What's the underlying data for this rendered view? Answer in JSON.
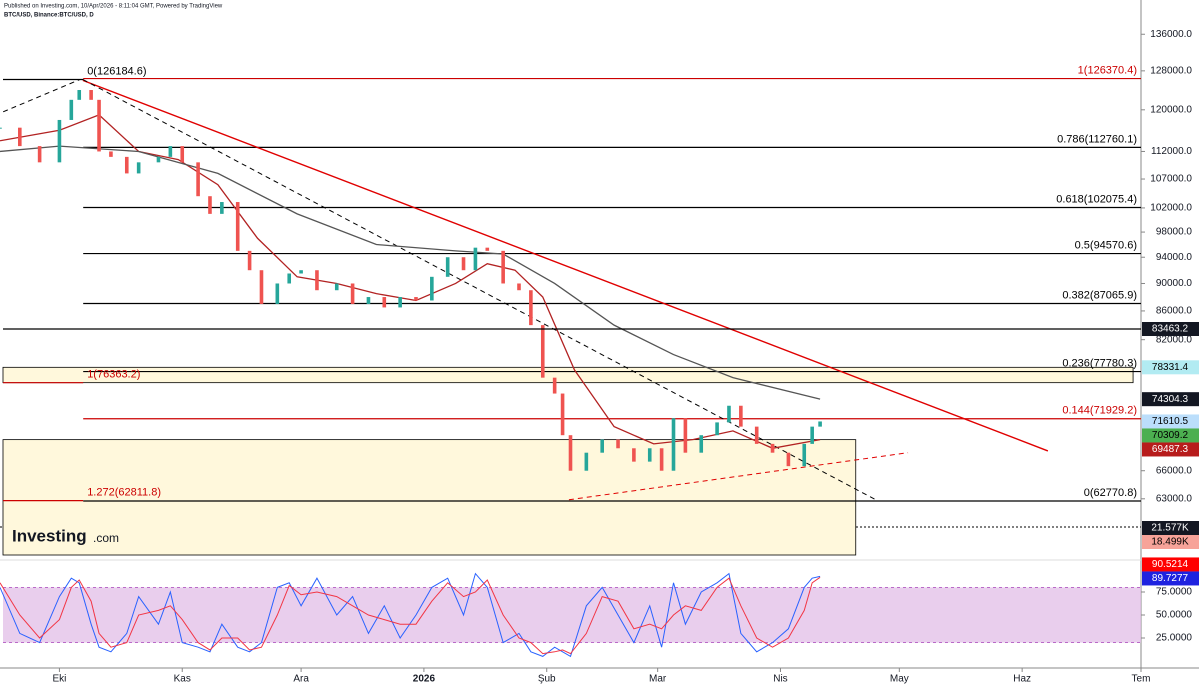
{
  "chart_data": {
    "type": "candlestick",
    "header": {
      "line1": "Published on Investing.com, 10/Apr/2026 - 8:11:04 GMT, Powered by TradingView",
      "line2": "BTC/USD, Binance:BTC/USD, D"
    },
    "logo": {
      "name": "Investing",
      "suffix": ".com"
    },
    "log_scale": true,
    "xlim": [
      -15,
      273
    ],
    "ylim": [
      57400,
      138100
    ],
    "xticks": [
      {
        "value": 0,
        "label": "Eki"
      },
      {
        "value": 31,
        "label": "Kas"
      },
      {
        "value": 61,
        "label": "Ara"
      },
      {
        "value": 92,
        "label": "2026"
      },
      {
        "value": 123,
        "label": "Şub"
      },
      {
        "value": 151,
        "label": "Mar"
      },
      {
        "value": 182,
        "label": "Nis"
      },
      {
        "value": 212,
        "label": "May"
      },
      {
        "value": 243,
        "label": "Haz"
      },
      {
        "value": 273,
        "label": "Tem"
      }
    ],
    "yticks": [
      {
        "value": 136000,
        "label": "136000.0"
      },
      {
        "value": 128000,
        "label": "128000.0"
      },
      {
        "value": 120000,
        "label": "120000.0"
      },
      {
        "value": 112000,
        "label": "112000.0"
      },
      {
        "value": 107000,
        "label": "107000.0"
      },
      {
        "value": 102000,
        "label": "102000.0"
      },
      {
        "value": 98000,
        "label": "98000.0"
      },
      {
        "value": 94000,
        "label": "94000.0"
      },
      {
        "value": 90000,
        "label": "90000.0"
      },
      {
        "value": 86000,
        "label": "86000.0"
      },
      {
        "value": 82000,
        "label": "82000.0"
      },
      {
        "value": 66000,
        "label": "66000.0"
      },
      {
        "value": 63000,
        "label": "63000.0"
      }
    ],
    "x": [
      -15,
      -10,
      -5,
      0,
      3,
      5,
      8,
      10,
      13,
      17,
      20,
      25,
      28,
      31,
      35,
      38,
      41,
      45,
      48,
      51,
      55,
      58,
      61,
      65,
      70,
      74,
      78,
      82,
      86,
      90,
      94,
      98,
      102,
      105,
      108,
      112,
      116,
      119,
      122,
      125,
      127,
      129,
      133,
      137,
      141,
      145,
      149,
      152,
      155,
      158,
      162,
      166,
      169,
      172,
      176,
      180,
      184,
      188,
      190,
      192
    ],
    "close": [
      116500,
      113000,
      110000,
      118000,
      122000,
      124000,
      122000,
      112000,
      111000,
      108000,
      110000,
      111000,
      113000,
      110000,
      104000,
      101000,
      103000,
      95000,
      92000,
      87000,
      90000,
      91500,
      92000,
      89000,
      90000,
      87000,
      88000,
      86500,
      88000,
      87500,
      91000,
      94000,
      92000,
      95500,
      95000,
      90000,
      89000,
      84000,
      77000,
      75000,
      70000,
      66000,
      68000,
      69500,
      68500,
      67000,
      68500,
      66000,
      72000,
      68000,
      70000,
      71500,
      73500,
      71000,
      69000,
      68000,
      66500,
      69000,
      71000,
      71610.5
    ],
    "up_color": "#26a69a",
    "down_color": "#ef5350",
    "series": [
      {
        "color": "#b22222",
        "x": [
          -15,
          0,
          10,
          20,
          30,
          40,
          50,
          60,
          70,
          80,
          90,
          100,
          108,
          115,
          122,
          130,
          140,
          150,
          160,
          170,
          180,
          192
        ],
        "values": [
          114000,
          116000,
          119000,
          112000,
          110500,
          106000,
          97000,
          91000,
          90000,
          88500,
          87500,
          90000,
          93000,
          92000,
          88000,
          78000,
          71000,
          69000,
          69500,
          70500,
          68500,
          69487.3
        ]
      },
      {
        "color": "#555555",
        "x": [
          -15,
          0,
          20,
          40,
          60,
          80,
          100,
          112,
          125,
          140,
          155,
          170,
          192
        ],
        "values": [
          112000,
          113000,
          112000,
          108000,
          101000,
          96000,
          95000,
          94500,
          90000,
          84000,
          80000,
          77000,
          74304.3
        ]
      }
    ],
    "levels": [
      {
        "label": "0(126184.6)",
        "value": 126184.6,
        "color": "#000000",
        "side": "left"
      },
      {
        "label": "1(126370.4)",
        "value": 126370.4,
        "color": "#cc0000",
        "side": "right"
      },
      {
        "label": "0.786(112760.1)",
        "value": 112760.1,
        "color": "#000000",
        "side": "right"
      },
      {
        "label": "0.618(102075.4)",
        "value": 102075.4,
        "color": "#000000",
        "side": "right"
      },
      {
        "label": "0.5(94570.6)",
        "value": 94570.6,
        "color": "#000000",
        "side": "right"
      },
      {
        "label": "0.382(87065.9)",
        "value": 87065.9,
        "color": "#000000",
        "side": "right"
      },
      {
        "label": "0.236(77780.3)",
        "value": 77780.3,
        "color": "#000000",
        "side": "right"
      },
      {
        "label": "1(76363.2)",
        "value": 76363.2,
        "color": "#cc0000",
        "side": "left"
      },
      {
        "label": "0.144(71929.2)",
        "value": 71929.2,
        "color": "#cc0000",
        "side": "right"
      },
      {
        "label": "1.272(62811.8)",
        "value": 62811.8,
        "color": "#cc0000",
        "side": "left"
      },
      {
        "label": "0(62770.8)",
        "value": 62770.8,
        "color": "#000000",
        "side": "right"
      }
    ],
    "zones": [
      {
        "x": [
          -15,
          271
        ],
        "range": [
          76363.2,
          78331.4
        ],
        "color": "#fff8dc"
      },
      {
        "x": [
          -15,
          201
        ],
        "range": [
          57400,
          69487.3
        ],
        "color": "#fff8dc"
      }
    ],
    "trend_lines": [
      {
        "x": [
          5.9,
          249.5
        ],
        "values": [
          126000,
          68200
        ],
        "color": "#e00000",
        "dashed": false
      },
      {
        "x": [
          -14.2,
          5.2
        ],
        "values": [
          119600,
          126184.6
        ],
        "color": "#000000",
        "dashed": true
      },
      {
        "x": [
          5.9,
          206.7
        ],
        "values": [
          126184.6,
          62760
        ],
        "color": "#000000",
        "dashed": true
      },
      {
        "x": [
          128.6,
          214.2
        ],
        "values": [
          62900,
          68000
        ],
        "color": "#e00000",
        "dashed": true
      }
    ],
    "price_labels": [
      {
        "value": 83463.2,
        "bg": "#131722",
        "fg": "#ffffff",
        "line": true
      },
      {
        "value": 78331.4,
        "bg": "#b2ebf2",
        "fg": "#000000",
        "line": false
      },
      {
        "value": 74304.3,
        "bg": "#131722",
        "fg": "#ffffff",
        "line": false
      },
      {
        "value": 71610.5,
        "bg": "#bbdefb",
        "fg": "#000000",
        "line": false
      },
      {
        "value": 70309.2,
        "bg": "#4caf50",
        "fg": "#000000",
        "line": false
      },
      {
        "value": 69487.3,
        "bg": "#b71c1c",
        "fg": "#ffffff",
        "line": false
      }
    ],
    "volume_labels": [
      {
        "label": "21.577K",
        "bg": "#131722",
        "fg": "#ffffff"
      },
      {
        "label": "18.499K",
        "bg": "#f7a399",
        "fg": "#000000"
      }
    ],
    "stoch": {
      "ylim": [
        0,
        100
      ],
      "yticks": [
        {
          "value": 75,
          "label": "75.0000"
        },
        {
          "value": 50,
          "label": "50.0000"
        },
        {
          "value": 25,
          "label": "25.0000"
        }
      ],
      "band": [
        20,
        80
      ],
      "band_color": "#e1bee7",
      "series": [
        {
          "color": "#2962ff",
          "values": [
            80,
            30,
            20,
            70,
            90,
            85,
            40,
            15,
            10,
            30,
            70,
            40,
            75,
            20,
            15,
            10,
            40,
            15,
            10,
            20,
            80,
            85,
            60,
            90,
            50,
            70,
            30,
            60,
            25,
            50,
            80,
            90,
            50,
            95,
            80,
            20,
            30,
            10,
            5,
            15,
            10,
            5,
            60,
            80,
            50,
            20,
            60,
            15,
            85,
            40,
            75,
            85,
            95,
            30,
            10,
            20,
            35,
            80,
            90,
            92
          ]
        },
        {
          "color": "#f23645",
          "values": [
            85,
            50,
            25,
            45,
            80,
            88,
            65,
            30,
            15,
            20,
            50,
            55,
            60,
            45,
            20,
            12,
            25,
            25,
            12,
            15,
            50,
            82,
            72,
            75,
            70,
            60,
            50,
            45,
            40,
            40,
            65,
            85,
            70,
            75,
            88,
            50,
            25,
            20,
            8,
            10,
            12,
            8,
            30,
            70,
            65,
            35,
            40,
            35,
            50,
            60,
            55,
            80,
            90,
            60,
            25,
            15,
            25,
            55,
            85,
            91
          ]
        }
      ],
      "labels": [
        {
          "value": 90.5214,
          "bg": "#ff0000",
          "fg": "#ffffff"
        },
        {
          "value": 89.7277,
          "bg": "#1e22e0",
          "fg": "#ffffff"
        }
      ]
    }
  }
}
